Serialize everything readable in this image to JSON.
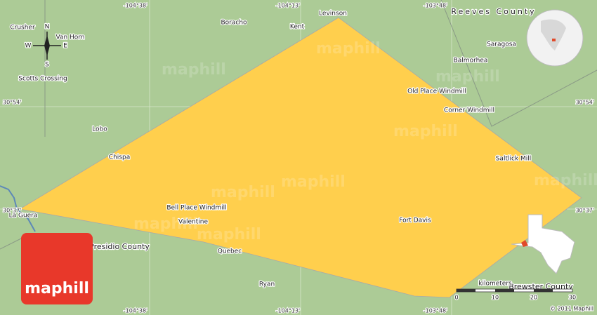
{
  "map": {
    "grid_labels": {
      "top": [
        "-104°38'",
        "-104°13'",
        "-103°48'"
      ],
      "bottom": [
        "-104°38'",
        "-104°13'",
        "-103°48'"
      ],
      "left": [
        "30°54'",
        "30°37'"
      ],
      "right": [
        "30°54'",
        "30°37'"
      ]
    },
    "places": [
      "Crusher",
      "Van Horn",
      "Boracho",
      "Kent",
      "Levinson",
      "Reeves County",
      "Saragosa",
      "Balmorhea",
      "Scotts Crossing",
      "Old Place Windmill",
      "Corner Windmill",
      "Lobo",
      "Chispa",
      "Saltlick Mill",
      "La Guera",
      "Bell Place Windmill",
      "Valentine",
      "Fort Davis",
      "Presidio County",
      "Quebec",
      "Ryan",
      "Brewster County"
    ],
    "compass": {
      "north": "N",
      "south": "S",
      "east": "E",
      "west": "W"
    },
    "scale": {
      "unit": "kilometers",
      "ticks": [
        "0",
        "10",
        "20",
        "30"
      ]
    },
    "watermark": "maphill",
    "logo": "maphill",
    "copyright": "© 2011 Maphill"
  }
}
